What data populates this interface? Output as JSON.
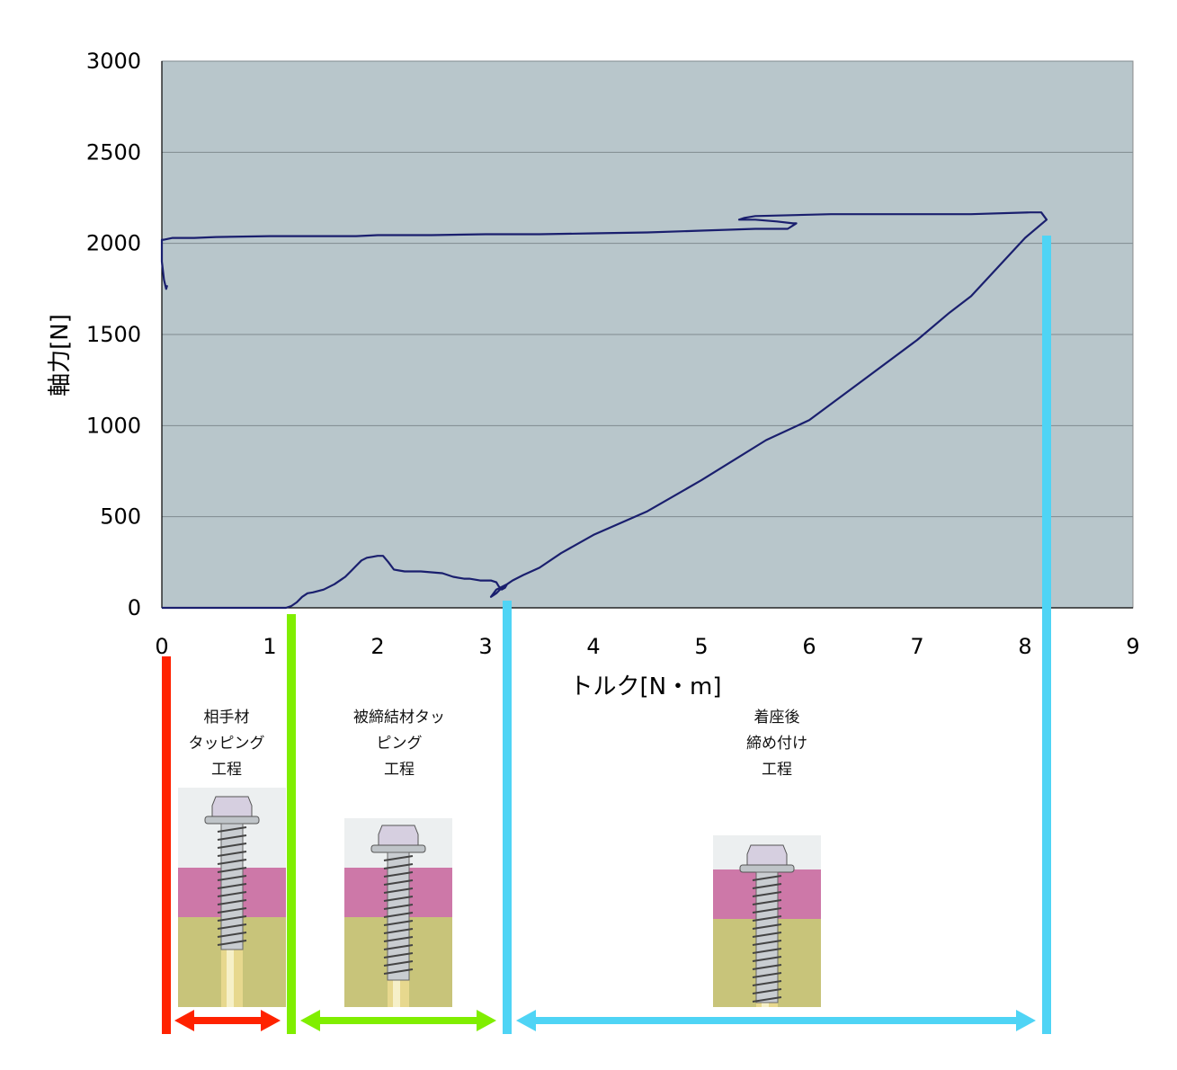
{
  "chart_data": {
    "type": "line",
    "xlabel": "トルク[N・m]",
    "ylabel": "軸力[N]",
    "xlim": [
      0,
      9
    ],
    "ylim": [
      0,
      3000
    ],
    "x_ticks": [
      "0",
      "1",
      "2",
      "3",
      "4",
      "5",
      "6",
      "7",
      "8",
      "9"
    ],
    "y_ticks": [
      "0",
      "500",
      "1000",
      "1500",
      "2000",
      "2500",
      "3000"
    ],
    "grid": "horizontal",
    "plot_background": "#b8c6cb",
    "line_color": "#1a1f6e",
    "series": [
      {
        "x": [
          0.0,
          0.5,
          1.0,
          1.15,
          1.2,
          1.25,
          1.3,
          1.35,
          1.4,
          1.5,
          1.6,
          1.7,
          1.75,
          1.8,
          1.85,
          1.9,
          1.95,
          2.0,
          2.05,
          2.1,
          2.15,
          2.2,
          2.25,
          2.3,
          2.4,
          2.5,
          2.6,
          2.7,
          2.8,
          2.85,
          2.95,
          3.0,
          3.05,
          3.1,
          3.12,
          3.15,
          3.18,
          3.2,
          3.15,
          3.1,
          3.05,
          3.1,
          3.2,
          3.25,
          3.35,
          3.5,
          3.7,
          4.0,
          4.5,
          5.0,
          5.6,
          6.0,
          6.5,
          7.0,
          7.3,
          7.5,
          8.0,
          8.2,
          8.15,
          8.05,
          7.5,
          6.2,
          5.5,
          5.4,
          5.35,
          5.5,
          5.7,
          5.85,
          5.88,
          5.8,
          5.5,
          5.0,
          4.5,
          4.0,
          3.5,
          3.0,
          2.5,
          2.0,
          1.8,
          1.5,
          1.0,
          0.5,
          0.3,
          0.1,
          0.02,
          0.0,
          0.0,
          0.02,
          0.04,
          0.05
        ],
        "y": [
          0,
          0,
          0,
          0,
          10,
          30,
          60,
          80,
          85,
          100,
          130,
          170,
          200,
          230,
          260,
          275,
          280,
          285,
          285,
          250,
          210,
          205,
          200,
          200,
          200,
          195,
          190,
          170,
          160,
          160,
          150,
          150,
          150,
          140,
          120,
          100,
          110,
          130,
          110,
          80,
          60,
          100,
          130,
          150,
          180,
          220,
          300,
          400,
          530,
          700,
          920,
          1030,
          1250,
          1470,
          1620,
          1710,
          2030,
          2130,
          2170,
          2170,
          2160,
          2160,
          2150,
          2140,
          2130,
          2130,
          2120,
          2110,
          2110,
          2080,
          2080,
          2070,
          2060,
          2055,
          2050,
          2050,
          2045,
          2045,
          2040,
          2040,
          2040,
          2035,
          2030,
          2030,
          2020,
          2020,
          1900,
          1800,
          1750,
          1770
        ]
      }
    ],
    "phases": [
      {
        "label": [
          "相手材",
          "タッピング",
          "工程"
        ],
        "color": "#ff2200",
        "x_start": 0.0,
        "x_end": 1.2
      },
      {
        "label": [
          "被締結材タッ",
          "ピング",
          "工程"
        ],
        "color": "#80ee00",
        "x_start": 1.2,
        "x_end": 3.2
      },
      {
        "label": [
          "着座後",
          "締め付け",
          "工程"
        ],
        "color": "#4fd4f5",
        "x_start": 3.2,
        "x_end": 8.2
      }
    ]
  }
}
